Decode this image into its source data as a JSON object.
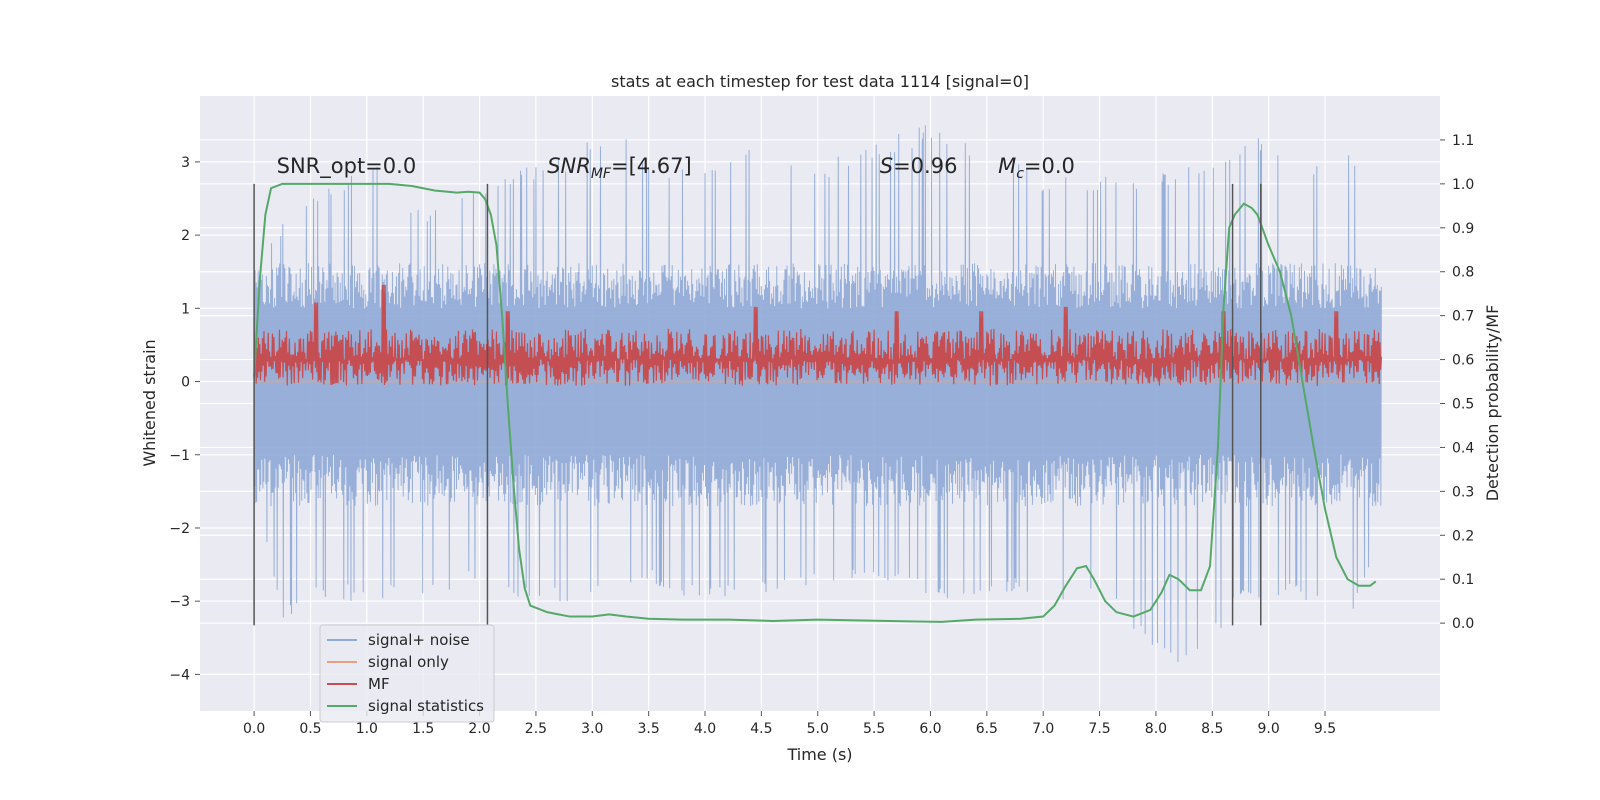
{
  "chart_data": {
    "type": "line",
    "title": "stats at each timestep for test data 1114 [signal=0]",
    "xlabel": "Time (s)",
    "ylabel": "Whitened strain",
    "ylabel_right": "Detection probability/MF",
    "xlim": [
      -0.48,
      10.52
    ],
    "ylim": [
      -4.5,
      3.9
    ],
    "ylim_right": [
      -0.2,
      1.2
    ],
    "xticks": [
      0.0,
      0.5,
      1.0,
      1.5,
      2.0,
      2.5,
      3.0,
      3.5,
      4.0,
      4.5,
      5.0,
      5.5,
      6.0,
      6.5,
      7.0,
      7.5,
      8.0,
      8.5,
      9.0,
      9.5
    ],
    "xtick_labels": [
      "0.0",
      "0.5",
      "1.0",
      "1.5",
      "2.0",
      "2.5",
      "3.0",
      "3.5",
      "4.0",
      "4.5",
      "5.0",
      "5.5",
      "6.0",
      "6.5",
      "7.0",
      "7.5",
      "8.0",
      "8.5",
      "9.0",
      "9.5"
    ],
    "yticks": [
      3,
      2,
      1,
      0,
      -1,
      -2,
      -3,
      -4
    ],
    "ytick_labels": [
      "3",
      "2",
      "1",
      "0",
      "−1",
      "−2",
      "−3",
      "−4"
    ],
    "yticks_right": [
      1.1,
      1.0,
      0.9,
      0.8,
      0.7,
      0.6,
      0.5,
      0.4,
      0.3,
      0.2,
      0.1,
      0.0
    ],
    "ytick_labels_right": [
      "1.1",
      "1.0",
      "0.9",
      "0.8",
      "0.7",
      "0.6",
      "0.5",
      "0.4",
      "0.3",
      "0.2",
      "0.1",
      "0.0"
    ],
    "grid": true,
    "legend_position": "lower-left",
    "annotations": [
      {
        "text": "SNR_opt=0.0",
        "x": 0.2,
        "y": 2.85,
        "axis": "left"
      },
      {
        "text": "SNR",
        "sub": "MF",
        "suffix": "=[4.67]",
        "italic": true,
        "x": 2.6,
        "y": 2.85,
        "axis": "left"
      },
      {
        "text": "S",
        "suffix": "=0.96",
        "italic": true,
        "x": 5.55,
        "y": 2.85,
        "axis": "left"
      },
      {
        "text": "M",
        "sub": "c",
        "suffix": "=0.0",
        "italic": true,
        "x": 6.6,
        "y": 2.85,
        "axis": "left"
      }
    ],
    "vlines": [
      0.0,
      2.07,
      8.68,
      8.93
    ],
    "vline_range_right": [
      -0.005,
      1.0
    ],
    "series": [
      {
        "name": "signal+ noise",
        "color": "#8faad6",
        "axis": "left",
        "t_range": [
          0.0,
          10.0
        ],
        "envelope_note": "dense whitened noise, roughly ±1.5 amplitude with spikes",
        "upper_peaks": [
          [
            0.05,
            1.6
          ],
          [
            0.3,
            2.3
          ],
          [
            0.6,
            2.6
          ],
          [
            1.05,
            3.0
          ],
          [
            1.5,
            2.3
          ],
          [
            2.1,
            2.8
          ],
          [
            2.75,
            3.1
          ],
          [
            3.0,
            3.4
          ],
          [
            3.2,
            3.45
          ],
          [
            3.6,
            2.9
          ],
          [
            4.4,
            3.2
          ],
          [
            5.05,
            3.0
          ],
          [
            5.4,
            3.25
          ],
          [
            5.95,
            3.5
          ],
          [
            6.55,
            3.3
          ],
          [
            7.0,
            2.8
          ],
          [
            7.75,
            2.8
          ],
          [
            8.25,
            2.9
          ],
          [
            8.95,
            3.4
          ],
          [
            9.3,
            2.7
          ],
          [
            9.65,
            3.55
          ],
          [
            9.95,
            2.3
          ]
        ],
        "lower_peaks": [
          [
            0.05,
            -1.7
          ],
          [
            0.25,
            -3.25
          ],
          [
            0.6,
            -3.0
          ],
          [
            1.4,
            -3.0
          ],
          [
            1.9,
            -2.8
          ],
          [
            2.6,
            -3.05
          ],
          [
            3.2,
            -2.9
          ],
          [
            3.5,
            -2.7
          ],
          [
            3.8,
            -3.0
          ],
          [
            4.4,
            -3.0
          ],
          [
            5.3,
            -2.75
          ],
          [
            5.85,
            -2.8
          ],
          [
            6.15,
            -3.1
          ],
          [
            6.8,
            -2.9
          ],
          [
            7.55,
            -3.05
          ],
          [
            8.2,
            -4.0
          ],
          [
            8.8,
            -3.0
          ],
          [
            9.4,
            -3.0
          ],
          [
            9.7,
            -3.4
          ],
          [
            9.95,
            -2.3
          ]
        ]
      },
      {
        "name": "signal only",
        "color": "#e69f80",
        "axis": "left",
        "x": [
          0.0,
          10.0
        ],
        "y": [
          0.0,
          0.0
        ]
      },
      {
        "name": "MF",
        "color": "#c44e52",
        "axis": "right",
        "t_range": [
          0.0,
          10.0
        ],
        "center": 0.6,
        "low": 0.54,
        "typical_high": 0.67,
        "peaks": [
          [
            0.55,
            0.73
          ],
          [
            1.15,
            0.77
          ],
          [
            2.25,
            0.71
          ],
          [
            4.45,
            0.72
          ],
          [
            5.7,
            0.71
          ],
          [
            6.45,
            0.71
          ],
          [
            7.2,
            0.72
          ],
          [
            8.6,
            0.71
          ],
          [
            9.6,
            0.71
          ]
        ]
      },
      {
        "name": "signal statistics",
        "color": "#55a868",
        "axis": "right",
        "x": [
          0.0,
          0.05,
          0.1,
          0.15,
          0.25,
          0.4,
          0.6,
          0.8,
          1.0,
          1.2,
          1.4,
          1.6,
          1.8,
          1.9,
          2.0,
          2.05,
          2.1,
          2.15,
          2.2,
          2.25,
          2.3,
          2.35,
          2.4,
          2.45,
          2.5,
          2.6,
          2.7,
          2.8,
          3.0,
          3.15,
          3.3,
          3.5,
          3.8,
          4.2,
          4.6,
          5.0,
          5.4,
          5.8,
          6.1,
          6.4,
          6.8,
          7.0,
          7.1,
          7.2,
          7.3,
          7.38,
          7.45,
          7.55,
          7.65,
          7.8,
          7.95,
          8.05,
          8.12,
          8.2,
          8.3,
          8.4,
          8.48,
          8.55,
          8.6,
          8.65,
          8.7,
          8.78,
          8.85,
          8.9,
          9.0,
          9.1,
          9.2,
          9.3,
          9.4,
          9.5,
          9.6,
          9.7,
          9.8,
          9.9,
          9.95
        ],
        "y": [
          0.56,
          0.78,
          0.93,
          0.99,
          1.0,
          1.0,
          1.0,
          1.0,
          1.0,
          1.0,
          0.995,
          0.985,
          0.98,
          0.982,
          0.98,
          0.965,
          0.93,
          0.86,
          0.7,
          0.5,
          0.32,
          0.17,
          0.08,
          0.04,
          0.035,
          0.025,
          0.02,
          0.015,
          0.015,
          0.02,
          0.015,
          0.01,
          0.008,
          0.008,
          0.005,
          0.008,
          0.006,
          0.004,
          0.003,
          0.008,
          0.01,
          0.015,
          0.04,
          0.085,
          0.125,
          0.13,
          0.1,
          0.05,
          0.025,
          0.015,
          0.03,
          0.07,
          0.11,
          0.1,
          0.075,
          0.075,
          0.13,
          0.4,
          0.72,
          0.9,
          0.93,
          0.955,
          0.945,
          0.93,
          0.86,
          0.8,
          0.7,
          0.55,
          0.4,
          0.26,
          0.15,
          0.1,
          0.085,
          0.085,
          0.095
        ]
      }
    ]
  }
}
